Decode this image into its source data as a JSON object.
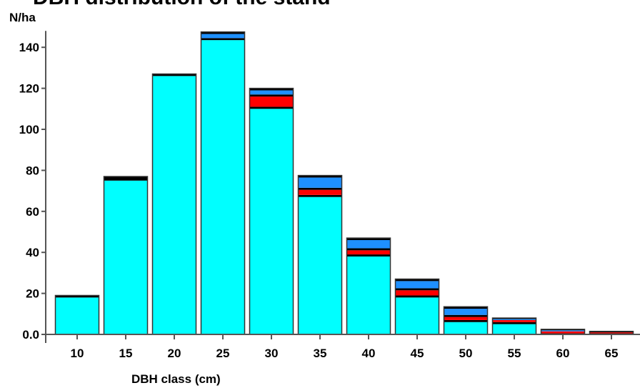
{
  "chart_data": {
    "type": "bar",
    "stacked": true,
    "title": "DBH distribution of the stand",
    "xlabel": "DBH class (cm)",
    "ylabel": "N/ha",
    "ylim": [
      0,
      148
    ],
    "yticks": [
      "0.0",
      "20",
      "40",
      "60",
      "80",
      "100",
      "120",
      "140"
    ],
    "ytick_values": [
      0,
      20,
      40,
      60,
      80,
      100,
      120,
      140
    ],
    "categories": [
      "10",
      "15",
      "20",
      "25",
      "30",
      "35",
      "40",
      "45",
      "50",
      "55",
      "60",
      "65"
    ],
    "grid": false,
    "series": [
      {
        "color": "#00ffff",
        "values": [
          18,
          75,
          126,
          143.5,
          110,
          67,
          38,
          18,
          6,
          5,
          0,
          0
        ]
      },
      {
        "color": "#000000",
        "values": [
          1,
          2,
          1,
          1,
          1,
          1,
          1,
          1,
          1,
          1,
          0.5,
          0.5
        ]
      },
      {
        "color": "#ff0000",
        "values": [
          0,
          0,
          0,
          0,
          5,
          2.5,
          2,
          2.5,
          1.5,
          1,
          1,
          0.5
        ]
      },
      {
        "color": "#000000",
        "values": [
          0,
          0,
          0,
          0,
          1,
          1,
          1,
          1,
          1,
          0,
          0,
          0
        ]
      },
      {
        "color": "#1e90ff",
        "values": [
          0,
          0,
          0,
          2,
          2,
          5,
          4,
          3.5,
          3,
          0.5,
          0.5,
          0
        ]
      },
      {
        "color": "#000000",
        "values": [
          0,
          0,
          0,
          1,
          1,
          1,
          1,
          1,
          1,
          0.5,
          0.5,
          0.5
        ]
      }
    ]
  }
}
